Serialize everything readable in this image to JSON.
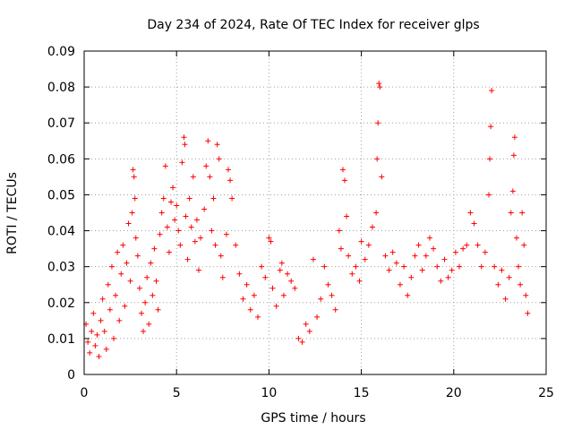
{
  "chart_data": {
    "type": "scatter",
    "title": "Day 234 of 2024, Rate Of TEC Index for receiver glps",
    "xlabel": "GPS time / hours",
    "ylabel": "ROTI / TECUs",
    "xlim": [
      0,
      25
    ],
    "ylim": [
      0,
      0.09
    ],
    "x_ticks": [
      0,
      5,
      10,
      15,
      20,
      25
    ],
    "y_ticks": [
      0,
      0.01,
      0.02,
      0.03,
      0.04,
      0.05,
      0.06,
      0.07,
      0.08,
      0.09
    ],
    "x_tick_labels": [
      "0",
      "5",
      "10",
      "15",
      "20",
      "25"
    ],
    "y_tick_labels": [
      "0",
      "0.01",
      "0.02",
      "0.03",
      "0.04",
      "0.05",
      "0.06",
      "0.07",
      "0.08",
      "0.09"
    ],
    "grid": true,
    "marker": "+",
    "color": "#ff0000",
    "series": [
      {
        "name": "ROTI",
        "note": "approximate envelope of dense scatter; see points",
        "points": [
          [
            0.1,
            0.014
          ],
          [
            0.2,
            0.009
          ],
          [
            0.3,
            0.006
          ],
          [
            0.4,
            0.012
          ],
          [
            0.5,
            0.017
          ],
          [
            0.6,
            0.008
          ],
          [
            0.7,
            0.011
          ],
          [
            0.8,
            0.005
          ],
          [
            0.9,
            0.015
          ],
          [
            1.0,
            0.021
          ],
          [
            1.1,
            0.012
          ],
          [
            1.2,
            0.007
          ],
          [
            1.3,
            0.025
          ],
          [
            1.4,
            0.018
          ],
          [
            1.5,
            0.03
          ],
          [
            1.6,
            0.01
          ],
          [
            1.7,
            0.022
          ],
          [
            1.8,
            0.034
          ],
          [
            1.9,
            0.015
          ],
          [
            2.0,
            0.028
          ],
          [
            2.1,
            0.036
          ],
          [
            2.2,
            0.019
          ],
          [
            2.3,
            0.031
          ],
          [
            2.4,
            0.042
          ],
          [
            2.5,
            0.026
          ],
          [
            2.6,
            0.045
          ],
          [
            2.65,
            0.057
          ],
          [
            2.7,
            0.055
          ],
          [
            2.75,
            0.049
          ],
          [
            2.8,
            0.038
          ],
          [
            2.9,
            0.033
          ],
          [
            3.0,
            0.024
          ],
          [
            3.1,
            0.017
          ],
          [
            3.2,
            0.012
          ],
          [
            3.3,
            0.02
          ],
          [
            3.4,
            0.027
          ],
          [
            3.5,
            0.014
          ],
          [
            3.6,
            0.031
          ],
          [
            3.7,
            0.022
          ],
          [
            3.8,
            0.035
          ],
          [
            3.9,
            0.026
          ],
          [
            4.0,
            0.018
          ],
          [
            4.1,
            0.039
          ],
          [
            4.2,
            0.045
          ],
          [
            4.3,
            0.049
          ],
          [
            4.4,
            0.058
          ],
          [
            4.5,
            0.041
          ],
          [
            4.6,
            0.034
          ],
          [
            4.7,
            0.048
          ],
          [
            4.8,
            0.052
          ],
          [
            4.9,
            0.043
          ],
          [
            5.0,
            0.047
          ],
          [
            5.1,
            0.04
          ],
          [
            5.2,
            0.036
          ],
          [
            5.3,
            0.059
          ],
          [
            5.4,
            0.066
          ],
          [
            5.45,
            0.064
          ],
          [
            5.5,
            0.044
          ],
          [
            5.6,
            0.032
          ],
          [
            5.7,
            0.049
          ],
          [
            5.8,
            0.041
          ],
          [
            5.9,
            0.055
          ],
          [
            6.0,
            0.037
          ],
          [
            6.1,
            0.043
          ],
          [
            6.2,
            0.029
          ],
          [
            6.3,
            0.038
          ],
          [
            6.5,
            0.046
          ],
          [
            6.6,
            0.058
          ],
          [
            6.7,
            0.065
          ],
          [
            6.8,
            0.055
          ],
          [
            6.9,
            0.04
          ],
          [
            7.0,
            0.049
          ],
          [
            7.1,
            0.036
          ],
          [
            7.2,
            0.064
          ],
          [
            7.3,
            0.06
          ],
          [
            7.4,
            0.033
          ],
          [
            7.5,
            0.027
          ],
          [
            7.7,
            0.039
          ],
          [
            7.8,
            0.057
          ],
          [
            7.9,
            0.054
          ],
          [
            8.0,
            0.049
          ],
          [
            8.2,
            0.036
          ],
          [
            8.4,
            0.028
          ],
          [
            8.6,
            0.021
          ],
          [
            8.8,
            0.025
          ],
          [
            9.0,
            0.018
          ],
          [
            9.2,
            0.022
          ],
          [
            9.4,
            0.016
          ],
          [
            9.6,
            0.03
          ],
          [
            9.8,
            0.027
          ],
          [
            10.0,
            0.038
          ],
          [
            10.1,
            0.037
          ],
          [
            10.2,
            0.024
          ],
          [
            10.4,
            0.019
          ],
          [
            10.6,
            0.029
          ],
          [
            10.7,
            0.031
          ],
          [
            10.8,
            0.022
          ],
          [
            11.0,
            0.028
          ],
          [
            11.2,
            0.026
          ],
          [
            11.4,
            0.024
          ],
          [
            11.6,
            0.01
          ],
          [
            11.8,
            0.009
          ],
          [
            12.0,
            0.014
          ],
          [
            12.2,
            0.012
          ],
          [
            12.4,
            0.032
          ],
          [
            12.6,
            0.016
          ],
          [
            12.8,
            0.021
          ],
          [
            13.0,
            0.03
          ],
          [
            13.2,
            0.025
          ],
          [
            13.4,
            0.022
          ],
          [
            13.6,
            0.018
          ],
          [
            13.8,
            0.04
          ],
          [
            13.9,
            0.035
          ],
          [
            14.0,
            0.057
          ],
          [
            14.1,
            0.054
          ],
          [
            14.2,
            0.044
          ],
          [
            14.3,
            0.033
          ],
          [
            14.5,
            0.028
          ],
          [
            14.7,
            0.03
          ],
          [
            14.9,
            0.026
          ],
          [
            15.0,
            0.037
          ],
          [
            15.2,
            0.032
          ],
          [
            15.4,
            0.036
          ],
          [
            15.6,
            0.041
          ],
          [
            15.8,
            0.045
          ],
          [
            15.85,
            0.06
          ],
          [
            15.9,
            0.07
          ],
          [
            15.95,
            0.081
          ],
          [
            16.0,
            0.08
          ],
          [
            16.1,
            0.055
          ],
          [
            16.3,
            0.033
          ],
          [
            16.5,
            0.029
          ],
          [
            16.7,
            0.034
          ],
          [
            16.9,
            0.031
          ],
          [
            17.1,
            0.025
          ],
          [
            17.3,
            0.03
          ],
          [
            17.5,
            0.022
          ],
          [
            17.7,
            0.027
          ],
          [
            17.9,
            0.033
          ],
          [
            18.1,
            0.036
          ],
          [
            18.3,
            0.029
          ],
          [
            18.5,
            0.033
          ],
          [
            18.7,
            0.038
          ],
          [
            18.9,
            0.035
          ],
          [
            19.1,
            0.03
          ],
          [
            19.3,
            0.026
          ],
          [
            19.5,
            0.032
          ],
          [
            19.7,
            0.027
          ],
          [
            19.9,
            0.029
          ],
          [
            20.1,
            0.034
          ],
          [
            20.3,
            0.03
          ],
          [
            20.5,
            0.035
          ],
          [
            20.7,
            0.036
          ],
          [
            20.9,
            0.045
          ],
          [
            21.1,
            0.042
          ],
          [
            21.3,
            0.036
          ],
          [
            21.5,
            0.03
          ],
          [
            21.7,
            0.034
          ],
          [
            21.9,
            0.05
          ],
          [
            21.95,
            0.06
          ],
          [
            22.0,
            0.069
          ],
          [
            22.05,
            0.079
          ],
          [
            22.2,
            0.03
          ],
          [
            22.4,
            0.025
          ],
          [
            22.6,
            0.029
          ],
          [
            22.8,
            0.021
          ],
          [
            23.0,
            0.027
          ],
          [
            23.1,
            0.045
          ],
          [
            23.2,
            0.051
          ],
          [
            23.25,
            0.061
          ],
          [
            23.3,
            0.066
          ],
          [
            23.4,
            0.038
          ],
          [
            23.5,
            0.03
          ],
          [
            23.6,
            0.025
          ],
          [
            23.7,
            0.045
          ],
          [
            23.8,
            0.036
          ],
          [
            23.9,
            0.022
          ],
          [
            24.0,
            0.017
          ]
        ]
      }
    ]
  }
}
